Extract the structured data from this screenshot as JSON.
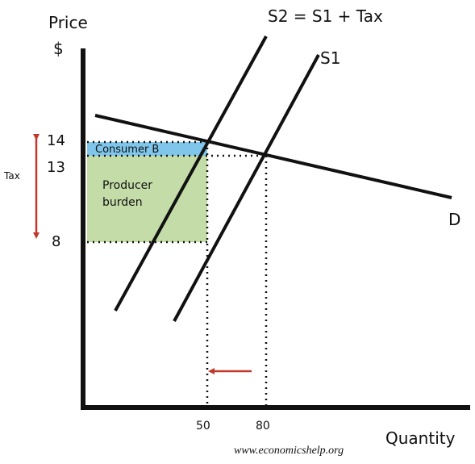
{
  "axes": {
    "y_title": "Price",
    "y_unit": "$",
    "x_title": "Quantity"
  },
  "curves": {
    "supply_tax": "S2 = S1 + Tax",
    "supply": "S1",
    "demand": "D"
  },
  "y_labels": [
    "14",
    "13",
    "8"
  ],
  "x_labels": [
    "50",
    "80"
  ],
  "tax_label": "Tax",
  "areas": {
    "consumer": "Consumer B",
    "producer": [
      "Producer",
      "burden"
    ]
  },
  "source": "www.economicshelp.org"
}
